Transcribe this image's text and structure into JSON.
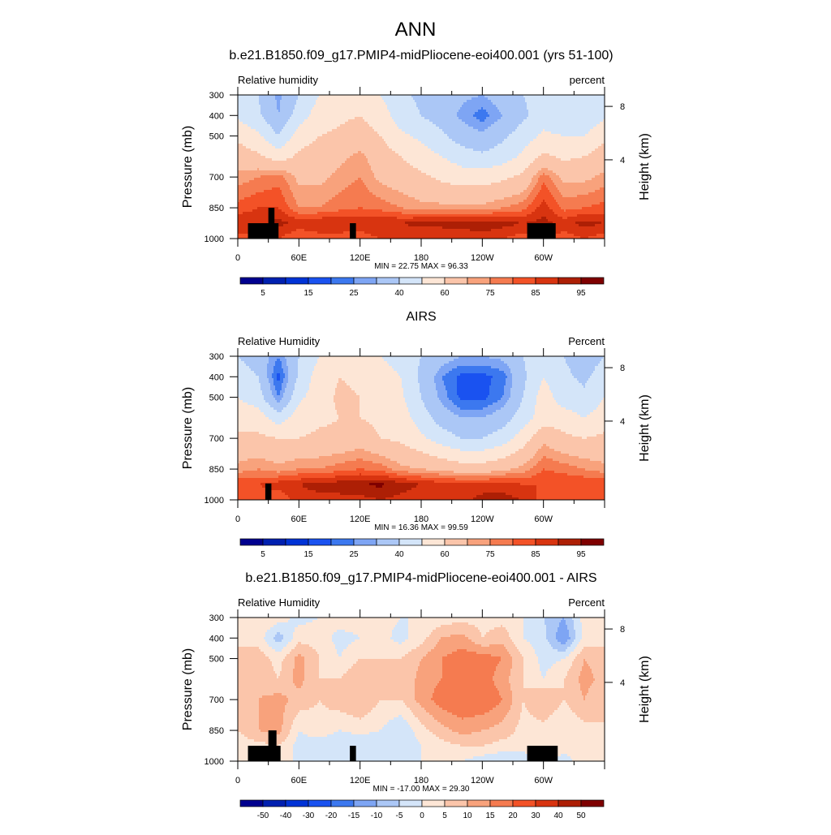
{
  "title": "ANN",
  "chart_data": [
    {
      "type": "heatmap",
      "title": "b.e21.B1850.f09_g17.PMIP4-midPliocene-eoi400.001 (yrs 51-100)",
      "left_label": "Relative humidity",
      "right_label": "percent",
      "ylabel": "Pressure (mb)",
      "ylabel_right": "Height (km)",
      "x_ticks": [
        "0",
        "60E",
        "120E",
        "180",
        "120W",
        "60W"
      ],
      "y_ticks": [
        "300",
        "400",
        "500",
        "700",
        "850",
        "1000"
      ],
      "y_right_ticks": [
        "8",
        "4"
      ],
      "xlim": [
        0,
        360
      ],
      "ylim": [
        1000,
        300
      ],
      "stats": "MIN =  22.75  MAX =  96.33",
      "levels": [
        5,
        10,
        15,
        20,
        25,
        30,
        40,
        50,
        60,
        70,
        75,
        80,
        85,
        90,
        95
      ],
      "colorbar_labels": [
        "5",
        "15",
        "25",
        "40",
        "60",
        "75",
        "85",
        "95"
      ],
      "colorbar_label_every": 2,
      "lon": [
        0,
        20,
        40,
        60,
        80,
        100,
        120,
        140,
        160,
        180,
        200,
        220,
        240,
        260,
        280,
        300,
        320,
        340,
        360
      ],
      "pressure": [
        300,
        400,
        500,
        600,
        700,
        850,
        925,
        1000
      ],
      "values": [
        [
          45,
          40,
          28,
          40,
          50,
          55,
          55,
          50,
          42,
          38,
          35,
          32,
          30,
          35,
          40,
          45,
          42,
          40,
          45
        ],
        [
          48,
          42,
          30,
          45,
          55,
          58,
          60,
          55,
          45,
          40,
          35,
          28,
          22,
          30,
          38,
          45,
          42,
          42,
          48
        ],
        [
          58,
          52,
          40,
          55,
          60,
          62,
          65,
          60,
          52,
          48,
          42,
          35,
          32,
          38,
          45,
          52,
          50,
          50,
          58
        ],
        [
          65,
          62,
          55,
          62,
          65,
          68,
          72,
          65,
          60,
          55,
          50,
          45,
          42,
          45,
          52,
          62,
          58,
          60,
          65
        ],
        [
          72,
          75,
          78,
          68,
          68,
          72,
          75,
          68,
          65,
          62,
          58,
          55,
          55,
          58,
          62,
          78,
          68,
          68,
          72
        ],
        [
          82,
          85,
          85,
          75,
          75,
          78,
          80,
          78,
          75,
          72,
          72,
          72,
          72,
          75,
          78,
          88,
          78,
          80,
          82
        ],
        [
          90,
          88,
          92,
          88,
          90,
          90,
          88,
          90,
          90,
          92,
          92,
          93,
          93,
          92,
          90,
          92,
          88,
          92,
          90
        ],
        [
          82,
          85,
          85,
          80,
          82,
          82,
          82,
          85,
          85,
          85,
          85,
          85,
          88,
          85,
          82,
          85,
          82,
          85,
          82
        ]
      ],
      "masked": [
        {
          "lon": [
            10,
            40
          ],
          "p": [
            925,
            1000
          ]
        },
        {
          "lon": [
            30,
            36
          ],
          "p": [
            850,
            1000
          ]
        },
        {
          "lon": [
            110,
            116
          ],
          "p": [
            925,
            1000
          ]
        },
        {
          "lon": [
            284,
            312
          ],
          "p": [
            925,
            1000
          ]
        }
      ]
    },
    {
      "type": "heatmap",
      "title": "AIRS",
      "left_label": "Relative Humidity",
      "right_label": "Percent",
      "ylabel": "Pressure (mb)",
      "ylabel_right": "Height (km)",
      "x_ticks": [
        "0",
        "60E",
        "120E",
        "180",
        "120W",
        "60W"
      ],
      "y_ticks": [
        "300",
        "400",
        "500",
        "700",
        "850",
        "1000"
      ],
      "y_right_ticks": [
        "8",
        "4"
      ],
      "xlim": [
        0,
        360
      ],
      "ylim": [
        1000,
        300
      ],
      "stats": "MIN =  16.36  MAX =  99.59",
      "levels": [
        5,
        10,
        15,
        20,
        25,
        30,
        40,
        50,
        60,
        70,
        75,
        80,
        85,
        90,
        95
      ],
      "colorbar_labels": [
        "5",
        "15",
        "25",
        "40",
        "60",
        "75",
        "85",
        "95"
      ],
      "colorbar_label_every": 2,
      "lon": [
        0,
        20,
        40,
        60,
        80,
        100,
        120,
        140,
        160,
        180,
        200,
        220,
        240,
        260,
        280,
        300,
        320,
        340,
        360
      ],
      "pressure": [
        300,
        400,
        500,
        600,
        700,
        850,
        925,
        1000
      ],
      "values": [
        [
          40,
          35,
          25,
          40,
          50,
          50,
          55,
          50,
          45,
          40,
          35,
          30,
          30,
          32,
          40,
          45,
          40,
          35,
          40
        ],
        [
          45,
          40,
          18,
          42,
          55,
          60,
          58,
          55,
          50,
          38,
          25,
          18,
          18,
          22,
          38,
          50,
          42,
          38,
          45
        ],
        [
          50,
          45,
          25,
          48,
          55,
          62,
          60,
          58,
          52,
          40,
          28,
          18,
          18,
          25,
          40,
          55,
          45,
          42,
          50
        ],
        [
          55,
          55,
          45,
          55,
          58,
          60,
          60,
          58,
          55,
          45,
          35,
          30,
          30,
          35,
          45,
          55,
          55,
          50,
          55
        ],
        [
          62,
          62,
          60,
          60,
          62,
          62,
          65,
          60,
          58,
          52,
          45,
          40,
          40,
          45,
          55,
          68,
          62,
          60,
          62
        ],
        [
          72,
          75,
          72,
          75,
          75,
          78,
          80,
          78,
          72,
          70,
          68,
          65,
          65,
          68,
          72,
          80,
          78,
          75,
          72
        ],
        [
          85,
          85,
          88,
          90,
          92,
          93,
          95,
          96,
          93,
          90,
          88,
          87,
          87,
          88,
          85,
          85,
          85,
          85,
          85
        ],
        [
          80,
          82,
          80,
          88,
          88,
          88,
          88,
          90,
          88,
          85,
          85,
          88,
          92,
          92,
          90,
          82,
          85,
          82,
          80
        ]
      ],
      "masked": [
        {
          "lon": [
            27,
            33
          ],
          "p": [
            920,
            1000
          ]
        }
      ]
    },
    {
      "type": "heatmap",
      "title": "b.e21.B1850.f09_g17.PMIP4-midPliocene-eoi400.001 - AIRS",
      "left_label": "Relative Humidity",
      "right_label": "Percent",
      "ylabel": "Pressure (mb)",
      "ylabel_right": "Height (km)",
      "x_ticks": [
        "0",
        "60E",
        "120E",
        "180",
        "120W",
        "60W"
      ],
      "y_ticks": [
        "300",
        "400",
        "500",
        "700",
        "850",
        "1000"
      ],
      "y_right_ticks": [
        "8",
        "4"
      ],
      "xlim": [
        0,
        360
      ],
      "ylim": [
        1000,
        300
      ],
      "stats": "MIN = -17.00  MAX =  29.30",
      "levels": [
        -50,
        -40,
        -30,
        -20,
        -15,
        -10,
        -5,
        0,
        5,
        10,
        15,
        20,
        30,
        40,
        50
      ],
      "colorbar_labels": [
        "-50",
        "-40",
        "-30",
        "-20",
        "-15",
        "-10",
        "-5",
        "0",
        "5",
        "10",
        "15",
        "20",
        "30",
        "40",
        "50"
      ],
      "colorbar_label_every": 1,
      "lon": [
        0,
        20,
        40,
        60,
        80,
        100,
        120,
        140,
        160,
        180,
        200,
        220,
        240,
        260,
        280,
        300,
        320,
        340,
        360
      ],
      "pressure": [
        300,
        400,
        500,
        600,
        700,
        850,
        925,
        1000
      ],
      "values": [
        [
          2,
          5,
          3,
          -2,
          0,
          3,
          2,
          2,
          0,
          0,
          2,
          3,
          3,
          3,
          0,
          -5,
          -10,
          2,
          2
        ],
        [
          3,
          3,
          -8,
          3,
          3,
          -2,
          0,
          2,
          -2,
          3,
          10,
          12,
          5,
          8,
          0,
          -3,
          -15,
          2,
          3
        ],
        [
          8,
          8,
          3,
          12,
          5,
          0,
          5,
          5,
          5,
          10,
          15,
          18,
          18,
          15,
          5,
          -2,
          0,
          10,
          8
        ],
        [
          8,
          8,
          5,
          12,
          5,
          5,
          10,
          8,
          5,
          12,
          15,
          20,
          18,
          12,
          5,
          0,
          5,
          12,
          8
        ],
        [
          5,
          10,
          12,
          8,
          5,
          8,
          10,
          5,
          5,
          12,
          18,
          20,
          20,
          15,
          5,
          10,
          5,
          10,
          5
        ],
        [
          5,
          10,
          12,
          0,
          3,
          0,
          2,
          0,
          -5,
          3,
          8,
          12,
          10,
          8,
          3,
          3,
          0,
          3,
          5
        ],
        [
          2,
          3,
          5,
          -2,
          -3,
          -5,
          -5,
          -5,
          -5,
          0,
          3,
          5,
          5,
          3,
          3,
          5,
          3,
          5,
          2
        ],
        [
          2,
          3,
          5,
          -2,
          -3,
          -3,
          -5,
          -5,
          -3,
          0,
          0,
          0,
          -3,
          -5,
          -5,
          3,
          -3,
          3,
          2
        ]
      ],
      "masked": [
        {
          "lon": [
            10,
            42
          ],
          "p": [
            925,
            1000
          ]
        },
        {
          "lon": [
            30,
            38
          ],
          "p": [
            850,
            1000
          ]
        },
        {
          "lon": [
            110,
            116
          ],
          "p": [
            925,
            1000
          ]
        },
        {
          "lon": [
            284,
            314
          ],
          "p": [
            925,
            1000
          ]
        }
      ]
    }
  ],
  "colors": {
    "palette": [
      "#00008f",
      "#0020b0",
      "#0033d6",
      "#1a52f0",
      "#3c78ef",
      "#7ea5f4",
      "#abc7f6",
      "#d4e5f9",
      "#fde6d6",
      "#fbc5aa",
      "#f8a27c",
      "#f57b50",
      "#f35227",
      "#d83410",
      "#ad1f05",
      "#7f0000"
    ],
    "mask": "#000000"
  }
}
